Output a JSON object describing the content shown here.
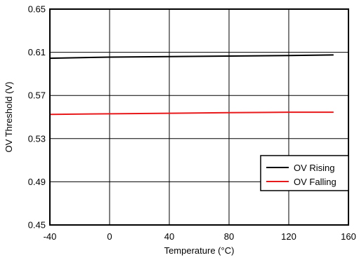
{
  "chart_data": {
    "type": "line",
    "xlabel": "Temperature (°C)",
    "ylabel": "OV Threshold (V)",
    "xlim": [
      -40,
      160
    ],
    "ylim": [
      0.45,
      0.65
    ],
    "x_ticks": [
      -40,
      0,
      40,
      80,
      120,
      160
    ],
    "y_ticks": [
      0.45,
      0.49,
      0.53,
      0.57,
      0.61,
      0.65
    ],
    "y_tick_labels": [
      "0.45",
      "0.49",
      "0.53",
      "0.57",
      "0.61",
      "0.65"
    ],
    "grid": true,
    "legend_position": "bottom-right",
    "series": [
      {
        "name": "OV Rising",
        "color": "#000000",
        "x": [
          -40,
          0,
          40,
          80,
          120,
          150
        ],
        "y": [
          0.6045,
          0.6055,
          0.606,
          0.6065,
          0.607,
          0.6075
        ]
      },
      {
        "name": "OV Falling",
        "color": "#e8191b",
        "x": [
          -40,
          0,
          40,
          80,
          120,
          150
        ],
        "y": [
          0.5525,
          0.553,
          0.5535,
          0.554,
          0.5545,
          0.5545
        ]
      }
    ]
  }
}
